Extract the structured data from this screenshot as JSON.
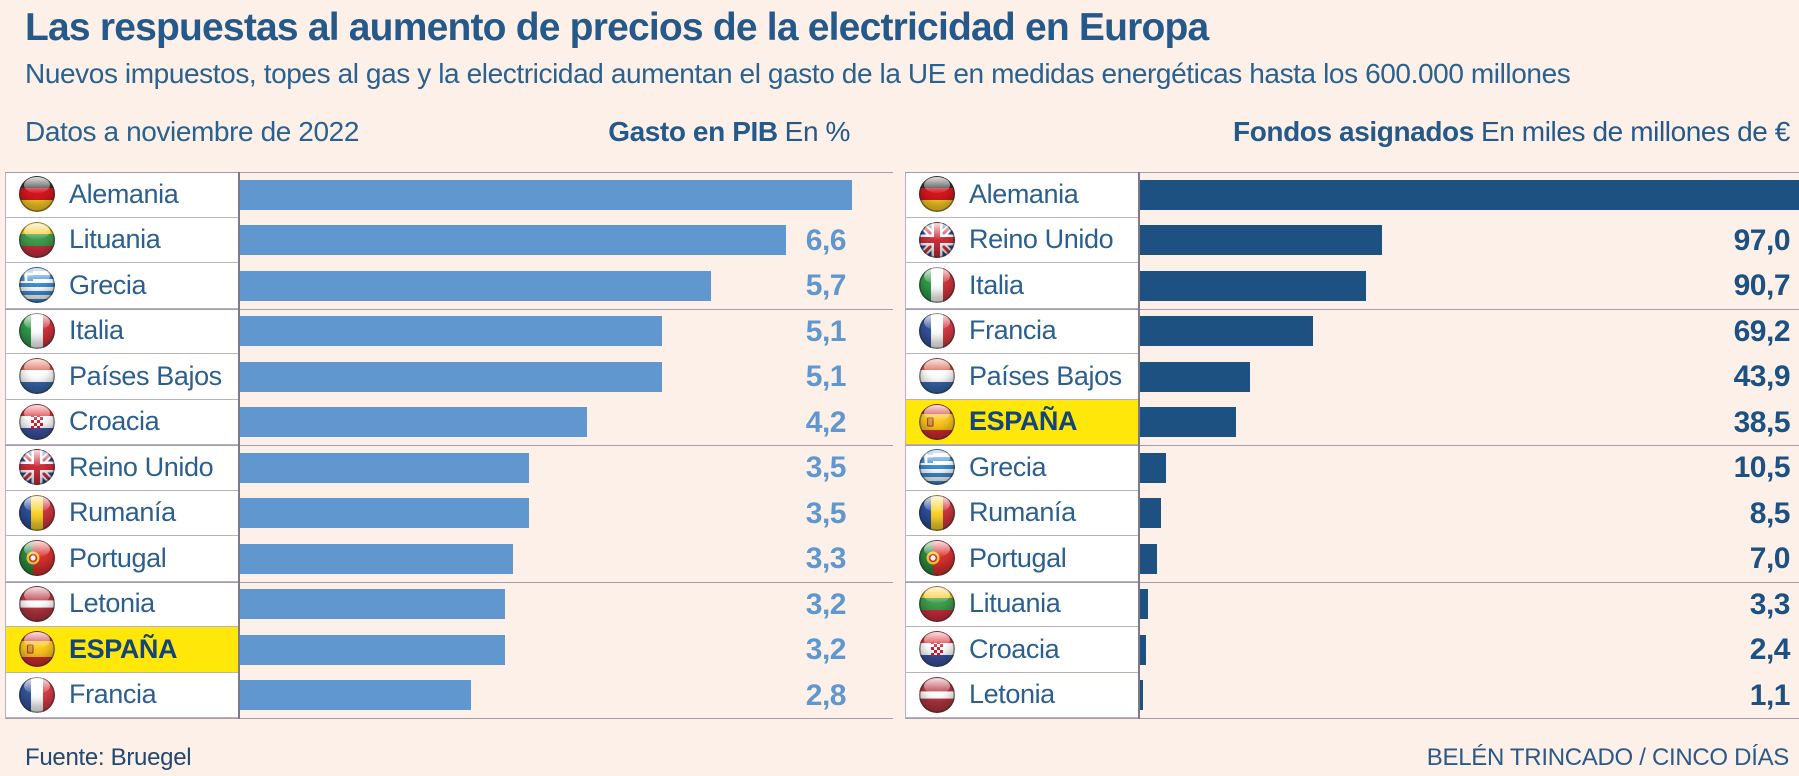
{
  "title": "Las respuestas al aumento de precios de la electricidad en Europa",
  "subtitle": "Nuevos impuestos, topes al gas y la electricidad aumentan el gasto de la UE en medidas energéticas hasta los 600.000 millones",
  "note": "Datos a noviembre de 2022",
  "source": "Fuente: Bruegel",
  "credit": "BELÉN TRINCADO / CINCO DÍAS",
  "colors": {
    "background": "#fdf0e8",
    "title_text": "#24598a",
    "body_text": "#2b5f90",
    "bar_left": "#5f97ce",
    "bar_right": "#1d5181",
    "highlight_yellow": "#ffe70a",
    "grid_line": "#a29cae",
    "cell_border": "#b7b1c0",
    "label_cell_background": "#ffffff",
    "value_inside_bar": "#ffffff"
  },
  "chart_data": [
    {
      "type": "bar",
      "orientation": "horizontal",
      "title": "Gasto en PIB",
      "unit": "En %",
      "legend_position": "none",
      "grid": "section-lines-every-3-rows",
      "axis_max": 7.9,
      "categories": [
        "Alemania",
        "Lituania",
        "Grecia",
        "Italia",
        "Países Bajos",
        "Croacia",
        "Reino Unido",
        "Rumanía",
        "Portugal",
        "Letonia",
        "ESPAÑA",
        "Francia"
      ],
      "values": [
        7.4,
        6.6,
        5.7,
        5.1,
        5.1,
        4.2,
        3.5,
        3.5,
        3.3,
        3.2,
        3.2,
        2.8
      ],
      "value_labels": [
        "7,4",
        "6,6",
        "5,7",
        "5,1",
        "5,1",
        "4,2",
        "3,5",
        "3,5",
        "3,3",
        "3,2",
        "3,2",
        "2,8"
      ],
      "flags": [
        "germany",
        "lithuania",
        "greece",
        "italy",
        "netherlands",
        "croatia",
        "uk",
        "romania",
        "portugal",
        "latvia",
        "spain",
        "france"
      ],
      "highlight_index": 10,
      "value_inside_index": 0
    },
    {
      "type": "bar",
      "orientation": "horizontal",
      "title": "Fondos asignados",
      "unit": "En miles de millones de €",
      "legend_position": "none",
      "grid": "section-lines-every-3-rows",
      "axis_max": 264.2,
      "categories": [
        "Alemania",
        "Reino Unido",
        "Italia",
        "Francia",
        "Países Bajos",
        "ESPAÑA",
        "Grecia",
        "Rumanía",
        "Portugal",
        "Lituania",
        "Croacia",
        "Letonia"
      ],
      "values": [
        264.2,
        97.0,
        90.7,
        69.2,
        43.9,
        38.5,
        10.5,
        8.5,
        7.0,
        3.3,
        2.4,
        1.1
      ],
      "value_labels": [
        "264,2",
        "97,0",
        "90,7",
        "69,2",
        "43,9",
        "38,5",
        "10,5",
        "8,5",
        "7,0",
        "3,3",
        "2,4",
        "1,1"
      ],
      "flags": [
        "germany",
        "uk",
        "italy",
        "france",
        "netherlands",
        "spain",
        "greece",
        "romania",
        "portugal",
        "lithuania",
        "croatia",
        "latvia"
      ],
      "highlight_index": 5,
      "value_inside_index": 0
    }
  ]
}
